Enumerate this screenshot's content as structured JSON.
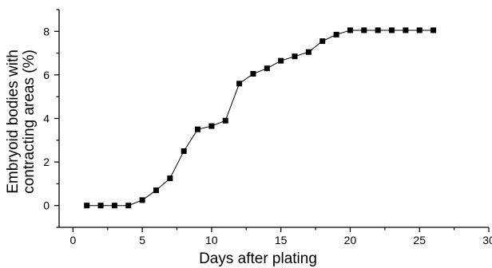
{
  "chart_data": {
    "type": "line",
    "title": "",
    "xlabel": "Days after plating",
    "ylabel_lines": [
      "Embryoid bodies with",
      "contracting areas (%)"
    ],
    "xlim": [
      -1,
      30
    ],
    "ylim": [
      -1,
      9
    ],
    "x_ticks": [
      0,
      5,
      10,
      15,
      20,
      25,
      30
    ],
    "y_ticks": [
      0,
      2,
      4,
      6,
      8
    ],
    "grid": false,
    "legend": "none",
    "marker": "square",
    "color": "#000000",
    "series": [
      {
        "x": [
          1,
          2,
          3,
          4,
          5,
          6,
          7,
          8,
          9,
          10,
          11,
          12,
          13,
          14,
          15,
          16,
          17,
          18,
          19,
          20,
          21,
          22,
          23,
          24,
          25,
          26
        ],
        "y": [
          0,
          0,
          0,
          0,
          0.25,
          0.7,
          1.25,
          2.5,
          3.5,
          3.65,
          3.9,
          5.6,
          6.05,
          6.3,
          6.65,
          6.85,
          7.05,
          7.55,
          7.85,
          8.05,
          8.05,
          8.05,
          8.05,
          8.05,
          8.05,
          8.05
        ]
      }
    ]
  }
}
